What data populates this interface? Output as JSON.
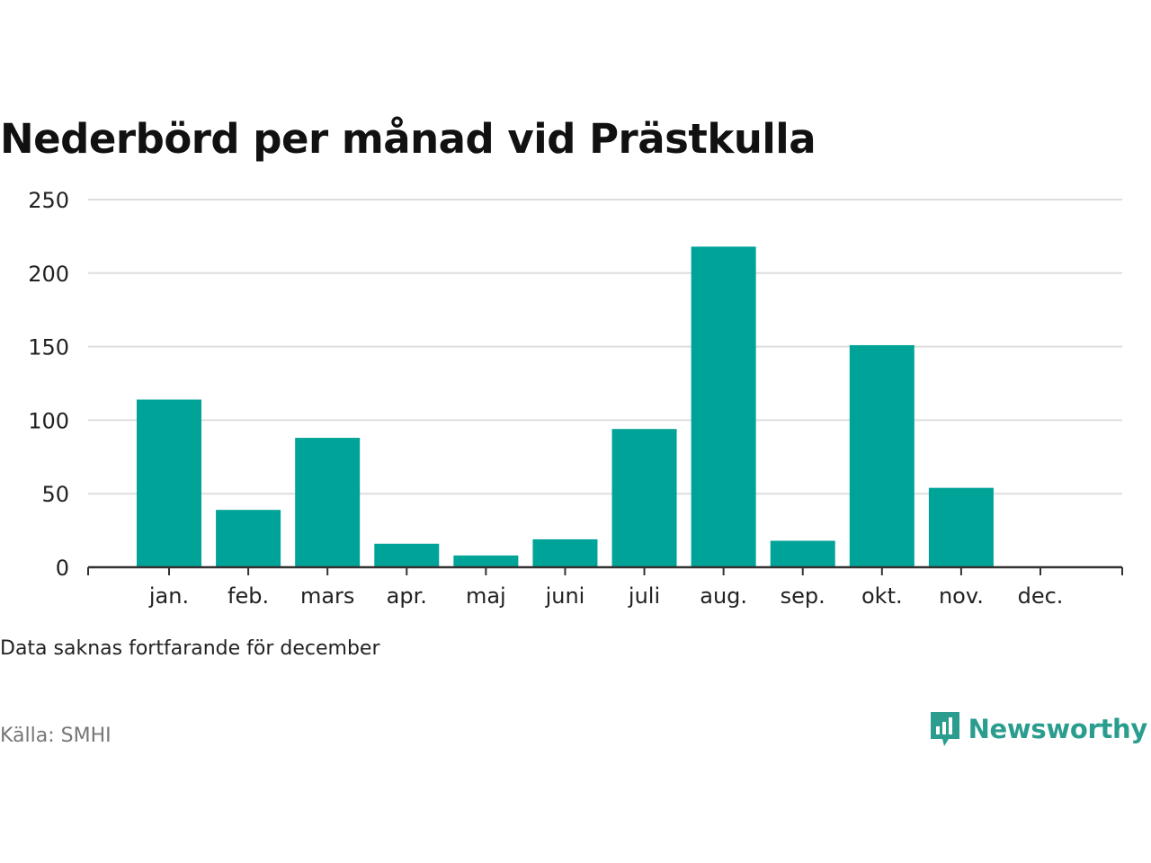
{
  "title": "Nederbörd per månad vid Prästkulla",
  "note": "Data saknas fortfarande för december",
  "source": "Källa: SMHI",
  "brand": {
    "name": "Newsworthy",
    "icon": "newsworthy-logo-icon",
    "color": "#2a9d8f"
  },
  "colors": {
    "bar": "#00a398",
    "grid": "#dddddd",
    "axis": "#333333"
  },
  "chart_data": {
    "type": "bar",
    "title": "Nederbörd per månad vid Prästkulla",
    "categories": [
      "jan.",
      "feb.",
      "mars",
      "apr.",
      "maj",
      "juni",
      "juli",
      "aug.",
      "sep.",
      "okt.",
      "nov.",
      "dec."
    ],
    "values": [
      114,
      39,
      88,
      16,
      8,
      19,
      94,
      218,
      18,
      151,
      54,
      null
    ],
    "ylim": [
      0,
      250
    ],
    "yticks": [
      0,
      50,
      100,
      150,
      200,
      250
    ],
    "xlabel": "",
    "ylabel": "",
    "grid": true,
    "legend": "none"
  }
}
